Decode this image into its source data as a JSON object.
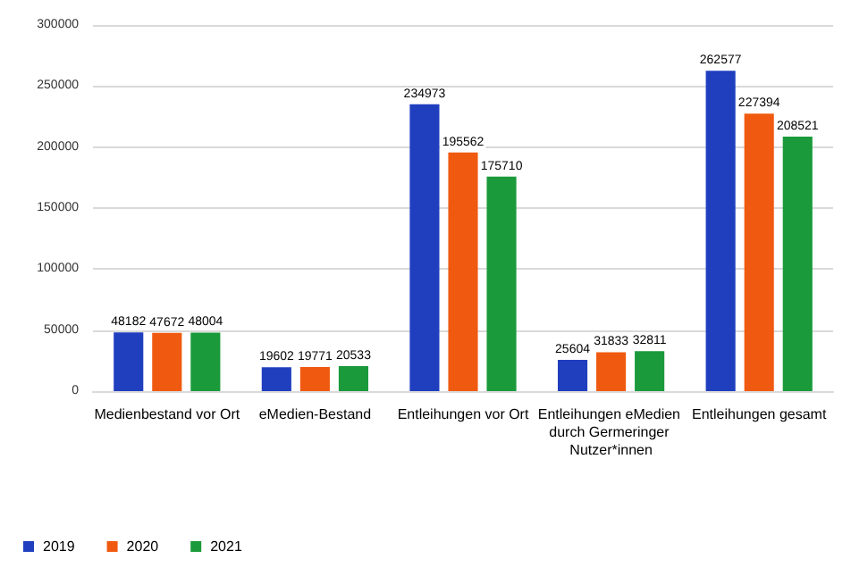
{
  "chart_data": {
    "type": "bar",
    "categories": [
      "Medienbestand vor Ort",
      "eMedien-Bestand",
      "Entleihungen vor Ort",
      "Entleihungen eMedien durch Germeringer Nutzer*innen",
      "Entleihungen gesamt"
    ],
    "series": [
      {
        "name": "2019",
        "color": "#1f3fbf",
        "values": [
          48182,
          19602,
          234973,
          25604,
          262577
        ]
      },
      {
        "name": "2020",
        "color": "#f05a10",
        "values": [
          47672,
          19771,
          195562,
          31833,
          227394
        ]
      },
      {
        "name": "2021",
        "color": "#1a9a3a",
        "values": [
          48004,
          20533,
          175710,
          32811,
          208521
        ]
      }
    ],
    "ylim": [
      0,
      300000
    ],
    "yticks": [
      0,
      50000,
      100000,
      150000,
      200000,
      250000,
      300000
    ],
    "grid": "y",
    "legend": "bottom left",
    "data_labels": true
  }
}
